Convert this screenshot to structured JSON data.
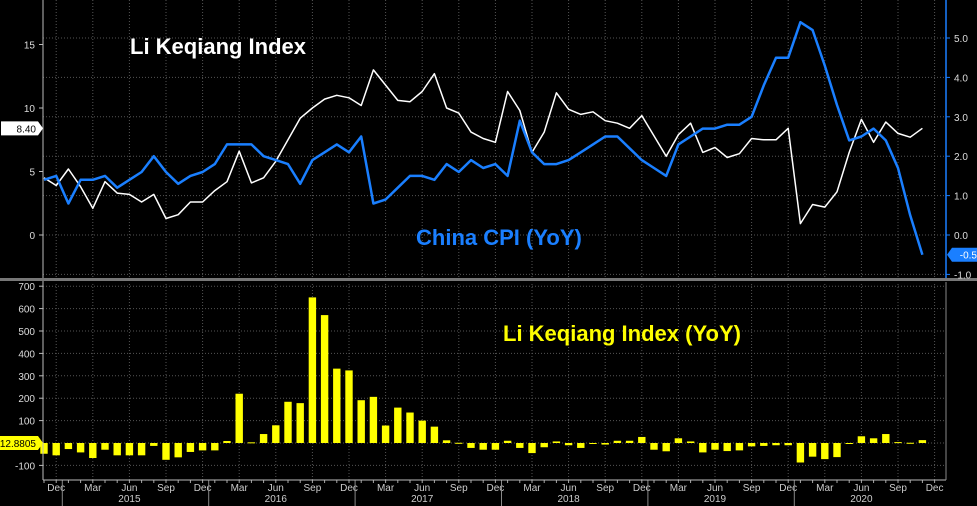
{
  "chart_data": [
    {
      "type": "line",
      "months": [
        "Nov 2014",
        "Dec 2014",
        "Jan 2015",
        "Feb 2015",
        "Mar 2015",
        "Apr 2015",
        "May 2015",
        "Jun 2015",
        "Jul 2015",
        "Aug 2015",
        "Sep 2015",
        "Oct 2015",
        "Nov 2015",
        "Dec 2015",
        "Jan 2016",
        "Feb 2016",
        "Mar 2016",
        "Apr 2016",
        "May 2016",
        "Jun 2016",
        "Jul 2016",
        "Aug 2016",
        "Sep 2016",
        "Oct 2016",
        "Nov 2016",
        "Dec 2016",
        "Jan 2017",
        "Feb 2017",
        "Mar 2017",
        "Apr 2017",
        "May 2017",
        "Jun 2017",
        "Jul 2017",
        "Aug 2017",
        "Sep 2017",
        "Oct 2017",
        "Nov 2017",
        "Dec 2017",
        "Jan 2018",
        "Feb 2018",
        "Mar 2018",
        "Apr 2018",
        "May 2018",
        "Jun 2018",
        "Jul 2018",
        "Aug 2018",
        "Sep 2018",
        "Oct 2018",
        "Nov 2018",
        "Dec 2018",
        "Jan 2019",
        "Feb 2019",
        "Mar 2019",
        "Apr 2019",
        "May 2019",
        "Jun 2019",
        "Jul 2019",
        "Aug 2019",
        "Sep 2019",
        "Oct 2019",
        "Nov 2019",
        "Dec 2019",
        "Jan 2020",
        "Feb 2020",
        "Mar 2020",
        "Apr 2020",
        "May 2020",
        "Jun 2020",
        "Jul 2020",
        "Aug 2020",
        "Sep 2020",
        "Oct 2020",
        "Nov 2020"
      ],
      "series": [
        {
          "name": "Li Keqiang Index",
          "axis": "left",
          "color": "#ffffff",
          "values": [
            4.5,
            3.9,
            5.2,
            3.8,
            2.1,
            4.2,
            3.3,
            3.2,
            2.6,
            3.2,
            1.3,
            1.6,
            2.6,
            2.6,
            3.5,
            4.2,
            6.6,
            4.1,
            4.5,
            5.8,
            7.5,
            9.2,
            10.0,
            10.7,
            11.0,
            10.8,
            10.2,
            13.0,
            11.8,
            10.6,
            10.5,
            11.3,
            12.7,
            10.0,
            9.6,
            8.1,
            7.6,
            7.3,
            11.3,
            9.8,
            6.5,
            8.1,
            11.2,
            9.9,
            9.5,
            9.7,
            9.0,
            8.8,
            8.4,
            9.4,
            7.8,
            6.2,
            7.9,
            8.8,
            6.5,
            6.9,
            6.1,
            6.4,
            7.6,
            7.5,
            7.5,
            8.4,
            0.9,
            2.4,
            2.2,
            3.4,
            6.5,
            9.1,
            7.3,
            8.9,
            8.0,
            7.7,
            8.4
          ]
        },
        {
          "name": "China CPI (YoY)",
          "axis": "right",
          "color": "#1a7fff",
          "values": [
            1.4,
            1.5,
            0.8,
            1.4,
            1.4,
            1.5,
            1.2,
            1.4,
            1.6,
            2.0,
            1.6,
            1.3,
            1.5,
            1.6,
            1.8,
            2.3,
            2.3,
            2.3,
            2.0,
            1.9,
            1.8,
            1.3,
            1.9,
            2.1,
            2.3,
            2.1,
            2.5,
            0.8,
            0.9,
            1.2,
            1.5,
            1.5,
            1.4,
            1.8,
            1.6,
            1.9,
            1.7,
            1.8,
            1.5,
            2.9,
            2.1,
            1.8,
            1.8,
            1.9,
            2.1,
            2.3,
            2.5,
            2.5,
            2.2,
            1.9,
            1.7,
            1.5,
            2.3,
            2.5,
            2.7,
            2.7,
            2.8,
            2.8,
            3.0,
            3.8,
            4.5,
            4.5,
            5.4,
            5.2,
            4.3,
            3.3,
            2.4,
            2.5,
            2.7,
            2.4,
            1.7,
            0.5,
            -0.5
          ]
        }
      ],
      "left_axis": {
        "ylim": [
          -2.5,
          18
        ],
        "ticks": [
          "0",
          "5",
          "10",
          "15"
        ],
        "last_value_label": "8.40"
      },
      "right_axis": {
        "ylim": [
          -1.2,
          5.9
        ],
        "ticks": [
          "-1.0",
          "0.0",
          "1.0",
          "2.0",
          "3.0",
          "4.0",
          "5.0"
        ],
        "last_value_label": "-0.5"
      },
      "annotations": [
        {
          "text": "Li Keqiang Index",
          "color": "#ffffff"
        },
        {
          "text": "China CPI (YoY)",
          "color": "#1a7fff"
        }
      ],
      "grid": true
    },
    {
      "type": "bar",
      "series": [
        {
          "name": "Li Keqiang Index (YoY)",
          "color": "#ffff00",
          "values": [
            -48,
            -55,
            -27,
            -42,
            -67,
            -30,
            -55,
            -55,
            -55,
            -13,
            -75,
            -64,
            -40,
            -33,
            -33,
            9,
            220,
            3,
            40,
            79,
            184,
            178,
            650,
            571,
            332,
            324,
            191,
            206,
            78,
            158,
            136,
            100,
            73,
            12,
            1,
            -22,
            -30,
            -30,
            10,
            -22,
            -45,
            -19,
            7,
            -10,
            -22,
            0,
            -7,
            10,
            10,
            27,
            -30,
            -37,
            21,
            7,
            -42,
            -30,
            -36,
            -33,
            -15,
            -13,
            -10,
            -10,
            -87,
            -61,
            -72,
            -63,
            0,
            30,
            21,
            40,
            4,
            1,
            12.88
          ]
        }
      ],
      "ylim": [
        -170,
        720
      ],
      "ticks": [
        "-100",
        "100",
        "200",
        "300",
        "400",
        "500",
        "600",
        "700"
      ],
      "last_value_label": "12.8805",
      "annotations": [
        {
          "text": "Li Keqiang Index (YoY)",
          "color": "#ffff00"
        }
      ],
      "grid": true
    }
  ],
  "x_axis": {
    "month_labels": [
      "Dec",
      "Mar",
      "Jun",
      "Sep",
      "Dec",
      "Mar",
      "Jun",
      "Sep",
      "Dec",
      "Mar",
      "Jun",
      "Sep",
      "Dec",
      "Mar",
      "Jun",
      "Sep",
      "Dec",
      "Mar",
      "Jun",
      "Sep",
      "Dec",
      "Mar",
      "Jun",
      "Sep",
      "Dec"
    ],
    "year_labels": [
      "2015",
      "2016",
      "2017",
      "2018",
      "2019",
      "2020"
    ]
  }
}
